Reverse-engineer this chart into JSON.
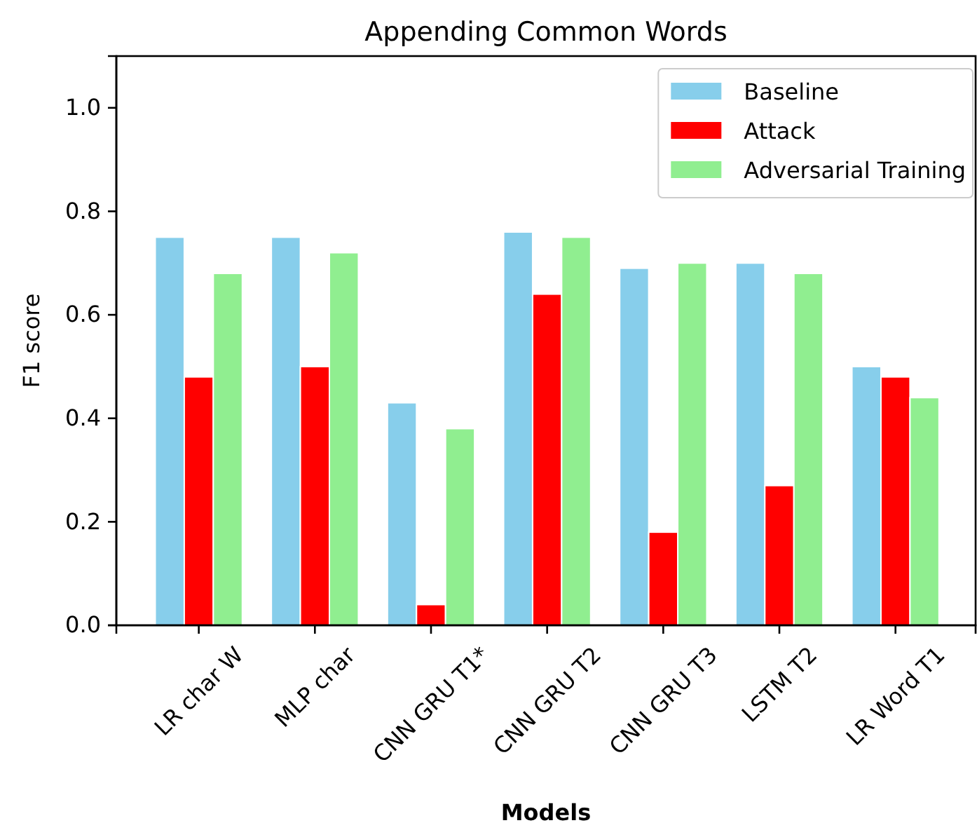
{
  "chart_data": {
    "type": "bar",
    "title": "Appending Common Words",
    "xlabel": "Models",
    "ylabel": "F1 score",
    "categories": [
      "LR char W",
      "MLP char",
      "CNN GRU T1*",
      "CNN GRU T2",
      "CNN GRU T3",
      "LSTM T2",
      "LR Word T1"
    ],
    "series": [
      {
        "name": "Baseline",
        "color": "#87ceeb",
        "values": [
          0.75,
          0.75,
          0.43,
          0.76,
          0.69,
          0.7,
          0.5
        ]
      },
      {
        "name": "Attack",
        "color": "#ff0000",
        "values": [
          0.48,
          0.5,
          0.04,
          0.64,
          0.18,
          0.27,
          0.48
        ]
      },
      {
        "name": "Adversarial Training",
        "color": "#90ee90",
        "values": [
          0.68,
          0.72,
          0.38,
          0.75,
          0.7,
          0.68,
          0.44
        ]
      }
    ],
    "ylim": [
      0,
      1.1
    ],
    "yticks": [
      {
        "value": 0,
        "label": "0.0"
      },
      0.2,
      0.4,
      0.6,
      0.8,
      {
        "value": 1,
        "label": "1.0"
      }
    ],
    "legend": "top right"
  }
}
